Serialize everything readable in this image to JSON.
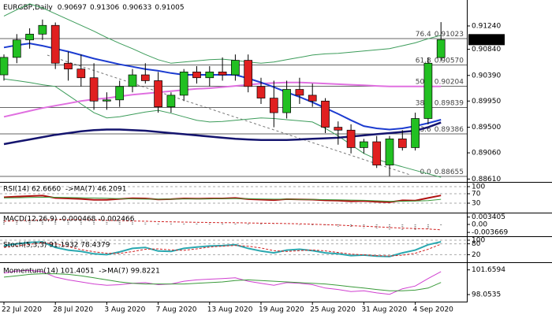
{
  "chart_data": {
    "type": "candlestick",
    "title": "EURGBP,Daily",
    "categories": [
      "22 Jul 2020",
      null,
      null,
      null,
      "28 Jul 2020",
      null,
      null,
      null,
      "3 Aug 2020",
      null,
      null,
      null,
      "7 Aug 2020",
      null,
      null,
      null,
      "13 Aug 2020",
      null,
      null,
      null,
      "19 Aug 2020",
      null,
      null,
      null,
      "25 Aug 2020",
      null,
      null,
      null,
      "31 Aug 2020",
      null,
      null,
      null,
      "4 Sep 2020",
      null,
      null
    ],
    "open": [
      0.904,
      0.907,
      0.91,
      0.911,
      0.9125,
      0.906,
      0.905,
      0.9035,
      0.8995,
      0.8997,
      0.902,
      0.904,
      0.903,
      0.8985,
      0.9005,
      0.9045,
      0.9035,
      0.9045,
      0.904,
      0.9065,
      0.902,
      0.9,
      0.8975,
      0.9015,
      0.9005,
      0.8995,
      0.895,
      0.8945,
      0.8915,
      0.8925,
      0.8885,
      0.893,
      0.8915,
      0.8965,
      0.90697
    ],
    "high": [
      0.9075,
      0.911,
      0.912,
      0.9135,
      0.913,
      0.908,
      0.9075,
      0.906,
      0.901,
      0.903,
      0.905,
      0.906,
      0.9045,
      0.901,
      0.905,
      0.9055,
      0.9055,
      0.907,
      0.9075,
      0.9075,
      0.9035,
      0.903,
      0.903,
      0.9035,
      0.9025,
      0.9,
      0.896,
      0.8955,
      0.893,
      0.8935,
      0.8935,
      0.8945,
      0.8975,
      0.907,
      0.91306
    ],
    "low": [
      0.903,
      0.906,
      0.9085,
      0.91,
      0.905,
      0.903,
      0.902,
      0.898,
      0.898,
      0.8985,
      0.901,
      0.9025,
      0.8975,
      0.8975,
      0.8995,
      0.9025,
      0.902,
      0.903,
      0.903,
      0.901,
      0.899,
      0.895,
      0.8965,
      0.899,
      0.8985,
      0.894,
      0.892,
      0.8905,
      0.8905,
      0.888,
      0.8866,
      0.891,
      0.891,
      0.8955,
      0.90633
    ],
    "close": [
      0.907,
      0.91,
      0.911,
      0.9125,
      0.906,
      0.905,
      0.9035,
      0.8995,
      0.8997,
      0.902,
      0.904,
      0.903,
      0.8985,
      0.9005,
      0.9045,
      0.9035,
      0.9045,
      0.904,
      0.9065,
      0.902,
      0.9,
      0.8975,
      0.9015,
      0.9005,
      0.8995,
      0.895,
      0.8945,
      0.8915,
      0.8925,
      0.8885,
      0.893,
      0.8915,
      0.8965,
      0.906,
      0.91005
    ],
    "up_color": "#22c022",
    "down_color": "#e02020",
    "ylim": [
      0.88574,
      0.91686
    ],
    "yticks": [
      {
        "value": 0.9124,
        "label": "0.91240"
      },
      {
        "value": 0.9084,
        "label": "0.90840"
      },
      {
        "value": 0.9039,
        "label": "0.90390"
      },
      {
        "value": 0.8995,
        "label": "0.89950"
      },
      {
        "value": 0.895,
        "label": "0.89500"
      },
      {
        "value": 0.8906,
        "label": "0.89060"
      },
      {
        "value": 0.8861,
        "label": "0.88610"
      }
    ],
    "fib_levels": [
      76.4,
      61.8,
      {
        "value": 50,
        "label": "50.0"
      },
      38.2,
      23.6,
      {
        "value": 0,
        "label": "0.0"
      }
    ],
    "fib_values": [
      0.91023,
      {
        "value": 0.9057,
        "label": "0.90570"
      },
      0.90204,
      0.89839,
      0.89386,
      0.88655
    ],
    "overlays": [
      {
        "color": "#3c9c5a",
        "width": 1,
        "values": [
          0.9141,
          0.9152,
          0.9162,
          0.9155,
          0.9145,
          0.9135,
          0.9125,
          0.9115,
          0.9104,
          0.9094,
          0.9085,
          0.9075,
          0.9066,
          0.906,
          0.9062,
          0.9064,
          0.9066,
          0.9067,
          0.9065,
          0.9062,
          0.906,
          0.9062,
          0.9066,
          0.907,
          0.9074,
          0.9076,
          0.9077,
          0.9079,
          0.9081,
          0.9083,
          0.9085,
          0.909,
          0.9095,
          0.9102,
          0.9108
        ]
      },
      {
        "color": "#3c9c5a",
        "width": 1,
        "values": [
          0.9033,
          0.903,
          0.9027,
          0.9023,
          0.902,
          0.9005,
          0.899,
          0.8975,
          0.8966,
          0.8968,
          0.8972,
          0.8976,
          0.8979,
          0.8974,
          0.8968,
          0.8962,
          0.8959,
          0.896,
          0.8962,
          0.8964,
          0.8966,
          0.8965,
          0.8963,
          0.8961,
          0.8959,
          0.8948,
          0.8935,
          0.892,
          0.8905,
          0.8895,
          0.8888,
          0.8882,
          0.8876,
          0.887,
          0.8864
        ]
      },
      {
        "color": "#e070e0",
        "width": 2,
        "values": [
          0.8968,
          0.8973,
          0.8978,
          0.8983,
          0.8987,
          0.8991,
          0.8995,
          0.8998,
          0.9,
          0.9003,
          0.9006,
          0.9008,
          0.901,
          0.9012,
          0.9014,
          0.9016,
          0.9017,
          0.9019,
          0.9021,
          0.9023,
          0.9025,
          0.9026,
          0.9027,
          0.9027,
          0.9026,
          0.9025,
          0.9024,
          0.9023,
          0.9022,
          0.9021,
          0.902,
          0.902,
          0.902,
          0.902,
          0.902
        ]
      },
      {
        "color": "#1c3cd0",
        "width": 2,
        "values": [
          0.9087,
          0.9091,
          0.9094,
          0.909,
          0.9085,
          0.908,
          0.9074,
          0.9068,
          0.9063,
          0.9058,
          0.9054,
          0.905,
          0.9047,
          0.9043,
          0.904,
          0.904,
          0.904,
          0.904,
          0.904,
          0.9034,
          0.9027,
          0.9019,
          0.901,
          0.9002,
          0.8993,
          0.8983,
          0.8973,
          0.8962,
          0.8952,
          0.8948,
          0.8946,
          0.8948,
          0.8952,
          0.8957,
          0.8963
        ]
      },
      {
        "color": "#14146e",
        "width": 2.5,
        "values": [
          0.8921,
          0.8925,
          0.8929,
          0.8933,
          0.8937,
          0.894,
          0.8943,
          0.8945,
          0.8946,
          0.8946,
          0.8945,
          0.8944,
          0.8942,
          0.894,
          0.8938,
          0.8936,
          0.8934,
          0.8932,
          0.893,
          0.8929,
          0.8928,
          0.8928,
          0.8928,
          0.8929,
          0.893,
          0.8931,
          0.8932,
          0.8934,
          0.8936,
          0.8938,
          0.894,
          0.8942,
          0.8944,
          0.895,
          0.8958
        ]
      }
    ],
    "panels": [
      {
        "label": "RSI(14) 62.6660  ->MA(7) 46.2091",
        "ylim": [
          0,
          100
        ],
        "yticks": [
          100,
          70,
          30
        ],
        "dashed_ticks": true,
        "series": [
          {
            "style": "line",
            "color": "#b01010",
            "width": 2,
            "values": [
              55,
              58,
              60,
              62,
              52,
              50,
              48,
              44,
              44,
              48,
              51,
              50,
              46,
              47,
              50,
              49,
              50,
              50,
              52,
              47,
              45,
              43,
              47,
              46,
              45,
              42,
              41,
              38,
              39,
              36,
              34,
              42,
              41,
              52,
              62.666
            ]
          },
          {
            "style": "line",
            "color": "#3a9a3a",
            "width": 1,
            "values": [
              52,
              53,
              54,
              55,
              55,
              54,
              53,
              52,
              51,
              49,
              48,
              47,
              47,
              47,
              48,
              48,
              48,
              49,
              49,
              49,
              48,
              47,
              47,
              46,
              46,
              45,
              44,
              43,
              42,
              40,
              38,
              38,
              39,
              41,
              46.2091
            ]
          }
        ]
      },
      {
        "label": "MACD(12,26,9) -0.000468 -0.002466",
        "ylim": [
          -0.004,
          0.004
        ],
        "yticks": [
          0.003405,
          {
            "value": 0,
            "label": "0.00"
          },
          -0.003669
        ],
        "dashed_ticks": false,
        "series": [
          {
            "style": "histogram",
            "color": "#888888",
            "width": 1,
            "values": [
              0.002,
              0.0022,
              0.0024,
              0.0026,
              0.0025,
              0.0023,
              0.002,
              0.0016,
              0.0013,
              0.0011,
              0.001,
              0.0009,
              0.0007,
              0.0006,
              0.0006,
              0.0005,
              0.0005,
              0.0005,
              0.0006,
              0.0005,
              0.0003,
              0.0001,
              0.0,
              -0.0002,
              -0.0004,
              -0.0007,
              -0.001,
              -0.0014,
              -0.0017,
              -0.0021,
              -0.0024,
              -0.0026,
              -0.0025,
              -0.0018,
              -0.000468
            ]
          },
          {
            "style": "dashed",
            "color": "#d02020",
            "width": 1,
            "values": [
              0.0015,
              0.0017,
              0.0019,
              0.0021,
              0.0022,
              0.0022,
              0.0022,
              0.0021,
              0.0019,
              0.0018,
              0.0016,
              0.0015,
              0.0013,
              0.0012,
              0.0011,
              0.001,
              0.0009,
              0.0008,
              0.0008,
              0.0007,
              0.0006,
              0.0005,
              0.0004,
              0.0003,
              0.0001,
              -0.0001,
              -0.0003,
              -0.0006,
              -0.0008,
              -0.0011,
              -0.0014,
              -0.0017,
              -0.0019,
              -0.0021,
              -0.002466
            ]
          }
        ]
      },
      {
        "label": "Stoch(5,3,3) 91.1932 78.4379",
        "ylim": [
          0,
          100
        ],
        "yticks": [
          100,
          80,
          20
        ],
        "dashed_ticks": true,
        "series": [
          {
            "style": "line",
            "color": "#2aa8b0",
            "width": 2,
            "values": [
              70,
              80,
              88,
              90,
              60,
              45,
              38,
              25,
              20,
              35,
              55,
              60,
              40,
              38,
              55,
              62,
              68,
              70,
              75,
              55,
              40,
              30,
              45,
              50,
              42,
              30,
              25,
              15,
              18,
              12,
              10,
              30,
              45,
              75,
              91.1932
            ]
          },
          {
            "style": "dashed",
            "color": "#d02020",
            "width": 1,
            "values": [
              60,
              68,
              77,
              86,
              80,
              65,
              48,
              36,
              28,
              27,
              37,
              50,
              52,
              46,
              44,
              52,
              62,
              67,
              71,
              67,
              57,
              42,
              38,
              42,
              46,
              41,
              32,
              23,
              19,
              15,
              13,
              17,
              28,
              50,
              78.4379
            ]
          }
        ]
      },
      {
        "label": "Momentum(14) 101.4051  ->MA(7) 99.8221",
        "ylim": [
          97.6,
          102.2
        ],
        "yticks": [
          101.6594,
          98.0535
        ],
        "dashed_ticks": false,
        "series": [
          {
            "style": "line",
            "color": "#d040d0",
            "width": 1,
            "values": [
              101.2,
              101.5,
              101.6,
              101.4,
              100.6,
              100.2,
              99.9,
              99.6,
              99.4,
              99.5,
              99.7,
              99.8,
              99.5,
              99.6,
              100.0,
              100.2,
              100.3,
              100.4,
              100.5,
              100.0,
              99.7,
              99.4,
              99.8,
              99.7,
              99.5,
              99.0,
              98.8,
              98.5,
              98.6,
              98.3,
              98.1,
              98.9,
              99.3,
              100.4,
              101.4051
            ]
          },
          {
            "style": "line",
            "color": "#3a9a3a",
            "width": 1,
            "values": [
              100.6,
              100.8,
              101.0,
              101.1,
              101.1,
              101.0,
              100.8,
              100.5,
              100.2,
              99.9,
              99.7,
              99.6,
              99.6,
              99.6,
              99.6,
              99.7,
              99.8,
              99.9,
              100.1,
              100.2,
              100.1,
              100.0,
              99.9,
              99.8,
              99.7,
              99.6,
              99.4,
              99.2,
              99.0,
              98.8,
              98.6,
              98.6,
              98.7,
              99.0,
              99.8221
            ]
          }
        ]
      }
    ]
  }
}
